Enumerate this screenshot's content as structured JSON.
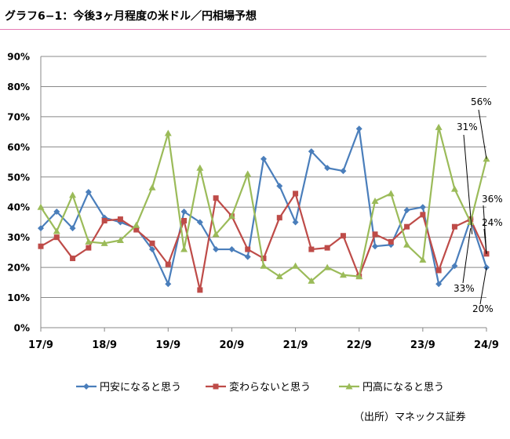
{
  "title": "グラフ6−1：今後3ヶ月程度の米ドル／円相場予想",
  "source": "（出所）マネックス証券",
  "chart_data": {
    "type": "line",
    "ylim": [
      0,
      90
    ],
    "y_ticks": [
      "0%",
      "10%",
      "20%",
      "30%",
      "40%",
      "50%",
      "60%",
      "70%",
      "80%",
      "90%"
    ],
    "x_ticks": [
      "17/9",
      "18/9",
      "19/9",
      "20/9",
      "21/9",
      "22/9",
      "23/9",
      "24/9"
    ],
    "n_points": 29,
    "legend_position": "bottom",
    "gridlines": true,
    "series": [
      {
        "name": "円安になると思う",
        "color": "#4a7ebb",
        "marker": "diamond",
        "values": [
          33,
          38.5,
          33,
          45,
          36.5,
          35,
          33,
          26,
          14.5,
          38.5,
          35,
          26,
          26,
          23.5,
          56,
          47,
          35,
          58.5,
          53,
          52,
          66,
          27,
          27.5,
          39,
          40,
          14.5,
          20.5,
          36,
          20
        ]
      },
      {
        "name": "変わらないと思う",
        "color": "#be4b48",
        "marker": "square",
        "values": [
          27,
          30,
          23,
          26.5,
          35.5,
          36,
          32.5,
          28,
          21,
          35.5,
          12.5,
          43,
          37,
          26,
          23,
          36.5,
          44.5,
          26,
          26.5,
          30.5,
          17,
          31,
          28.5,
          33.5,
          37.5,
          19,
          33.5,
          36,
          24.5
        ]
      },
      {
        "name": "円高になると思う",
        "color": "#9bbb59",
        "marker": "triangle",
        "values": [
          40,
          32,
          44,
          28.5,
          28,
          29,
          34,
          46.5,
          64.5,
          26,
          53,
          31,
          37,
          51,
          20.5,
          17,
          20.5,
          15.5,
          20,
          17.5,
          17,
          42,
          44.5,
          27.5,
          22.5,
          66.5,
          46,
          35,
          56
        ]
      }
    ],
    "annotations": [
      "56%",
      "31%",
      "36%",
      "24%",
      "33%",
      "20%"
    ]
  }
}
